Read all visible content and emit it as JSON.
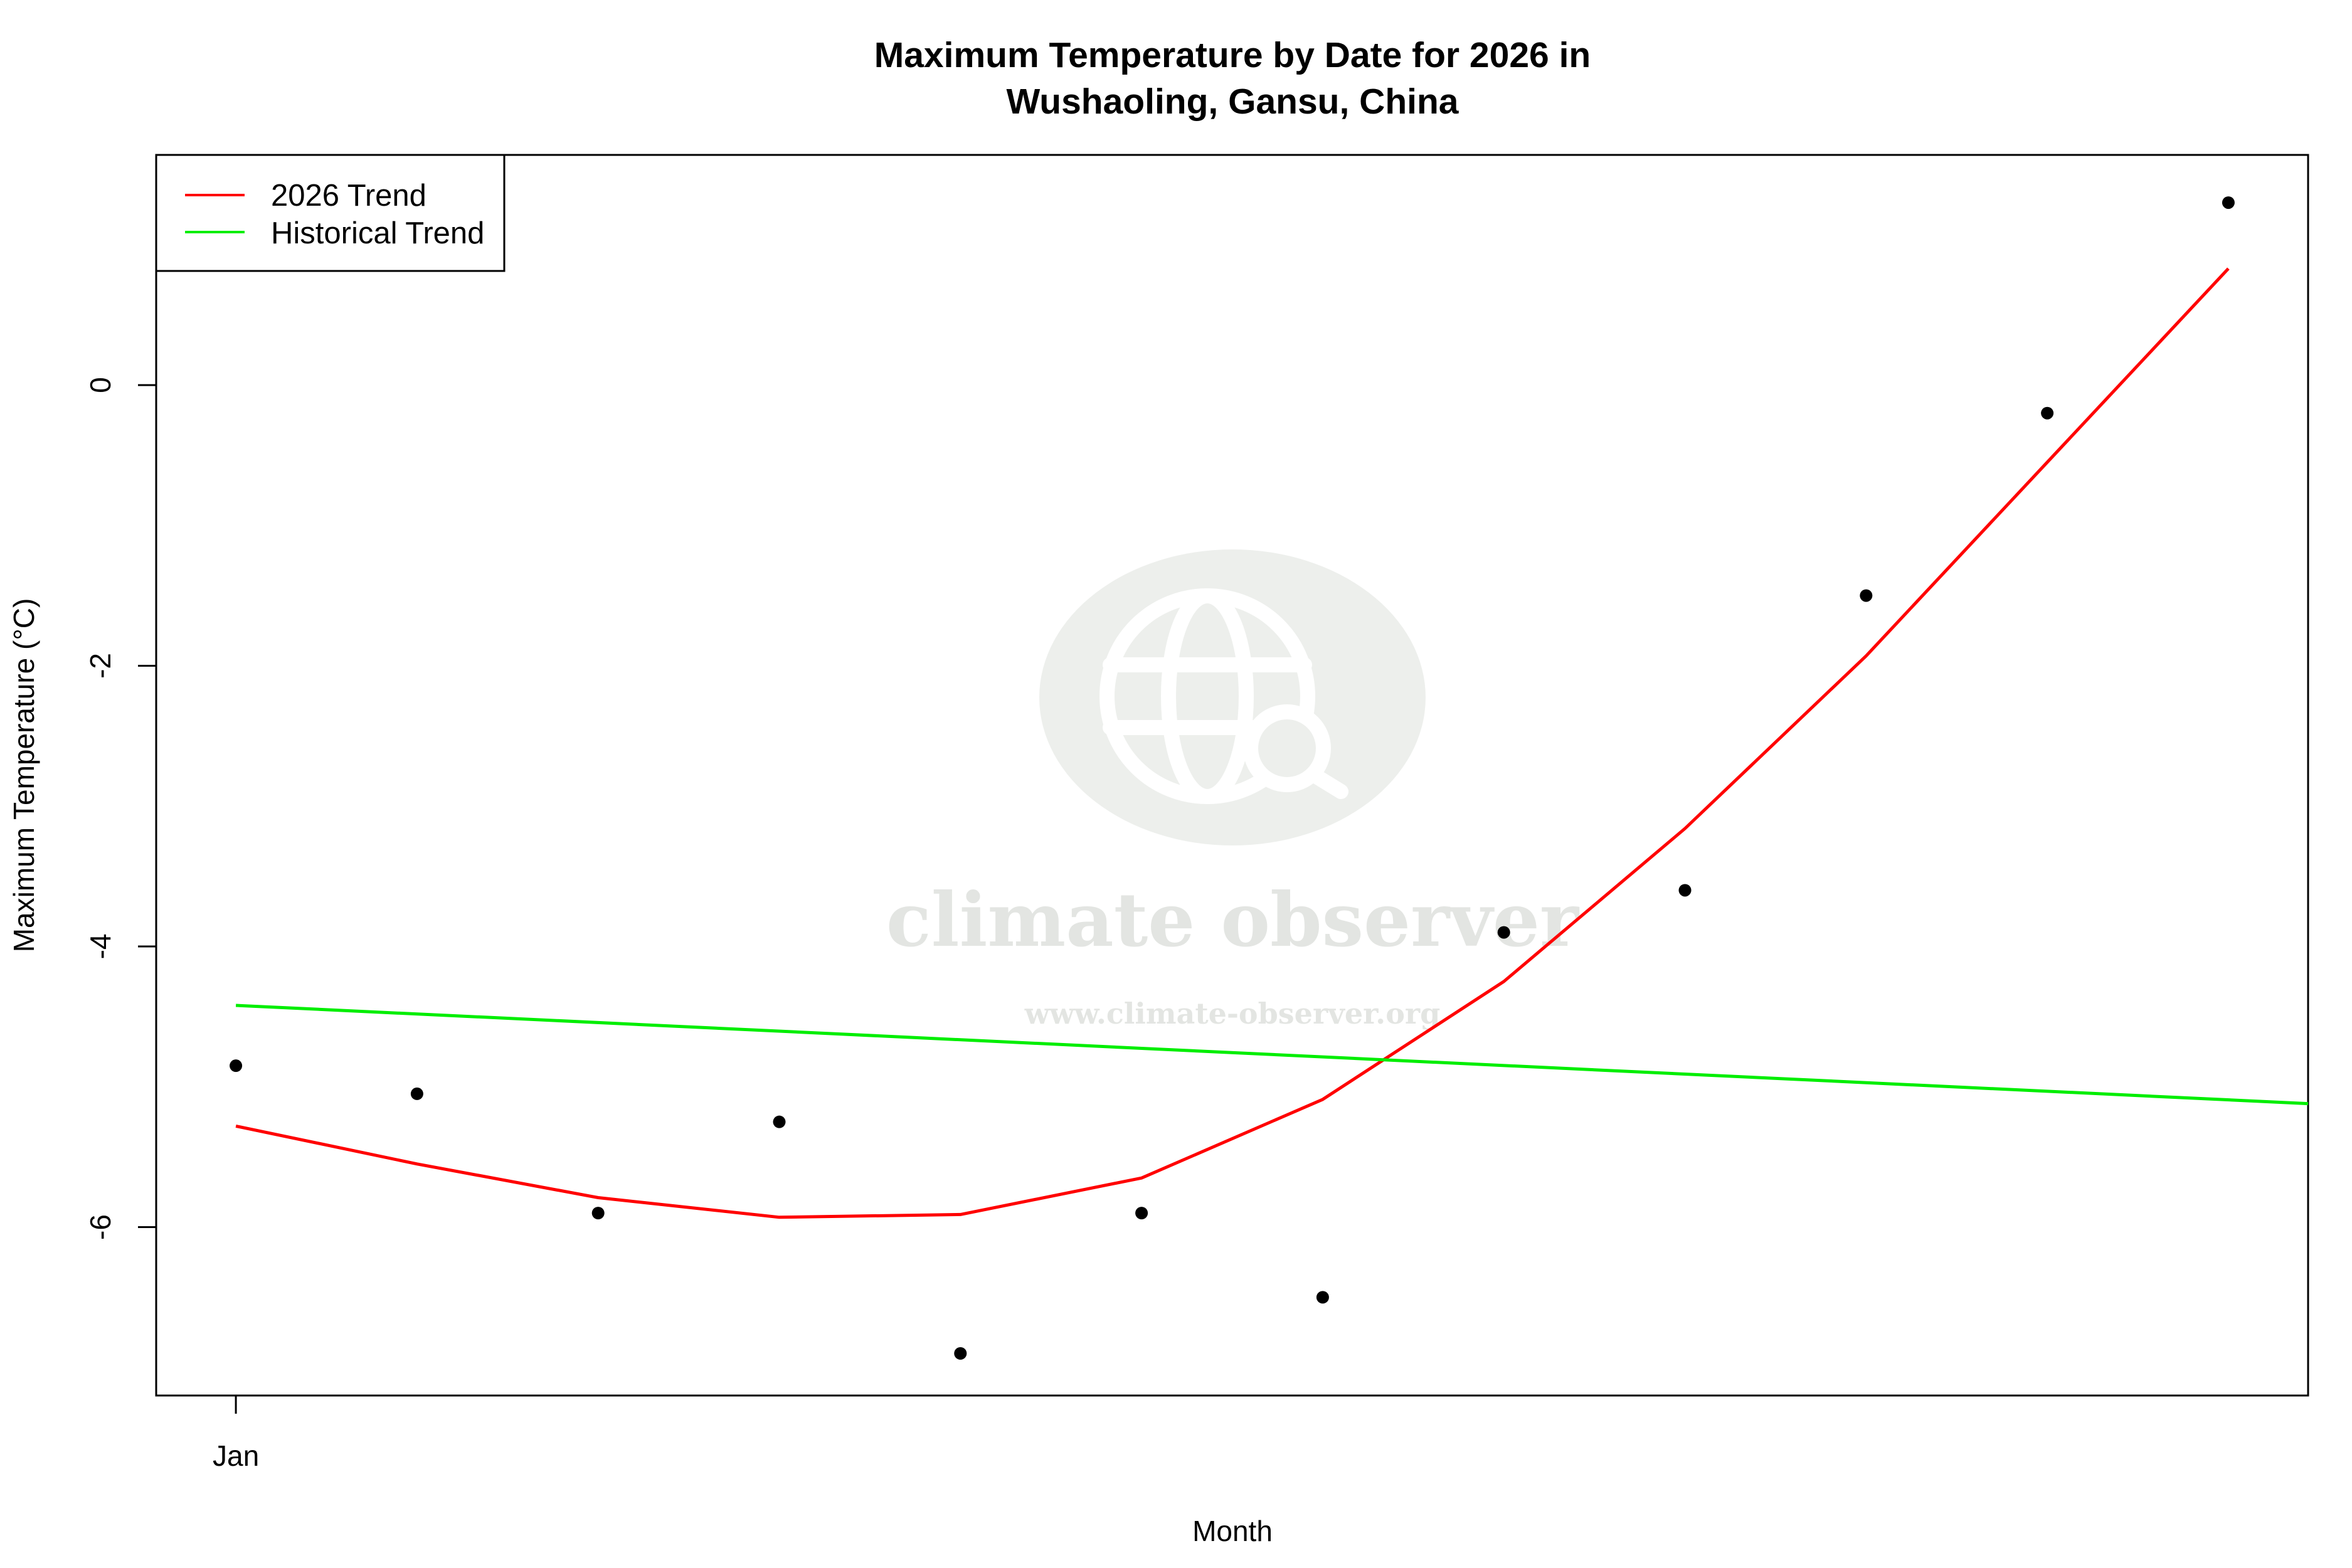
{
  "chart_data": {
    "type": "line",
    "title_line1": "Maximum Temperature by Date for 2026 in",
    "title_line2": "Wushaoling, Gansu, China",
    "xlabel": "Month",
    "ylabel": "Maximum Temperature (°C)",
    "x_tick_labels": [
      "Jan"
    ],
    "y_ticks": [
      0,
      -2,
      -4,
      -6
    ],
    "ylim": [
      -7.2,
      1.64
    ],
    "xlim": [
      0.56,
      12.44
    ],
    "grid": false,
    "legend_position": "top-left",
    "points": {
      "x": [
        1,
        2,
        3,
        4,
        5,
        6,
        7,
        8,
        9,
        10,
        11,
        12
      ],
      "y": [
        -4.85,
        -5.05,
        -5.9,
        -5.25,
        -6.9,
        -5.9,
        -6.5,
        -3.9,
        -3.6,
        -1.5,
        -0.2,
        1.3
      ]
    },
    "series": [
      {
        "name": "2026 Trend",
        "color": "#ff0000",
        "x": [
          1,
          2,
          3,
          4,
          5,
          6,
          7,
          8,
          9,
          10,
          11,
          12
        ],
        "y": [
          -5.28,
          -5.55,
          -5.79,
          -5.93,
          -5.91,
          -5.65,
          -5.09,
          -4.25,
          -3.16,
          -1.93,
          -0.55,
          0.83
        ]
      },
      {
        "name": "Historical Trend",
        "color": "#00ee00",
        "x": [
          1,
          12.44
        ],
        "y": [
          -4.42,
          -5.12
        ]
      }
    ]
  },
  "watermark": {
    "name": "climate observer",
    "url": "www.climate-observer.org"
  }
}
